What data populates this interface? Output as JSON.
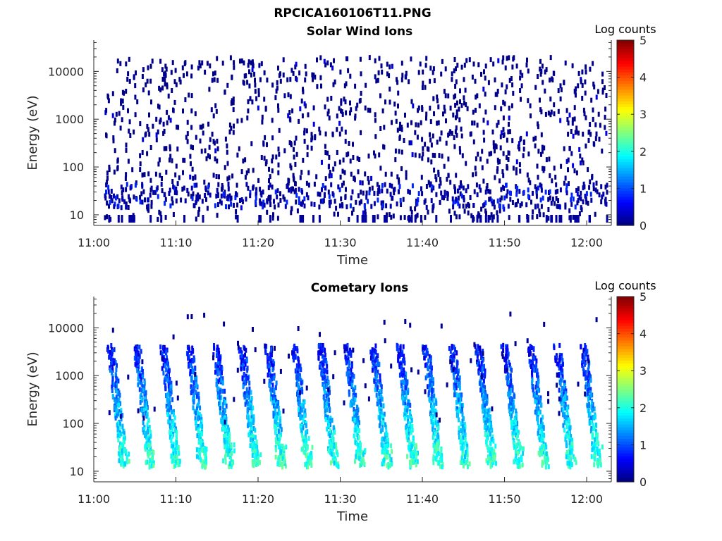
{
  "figure": {
    "title": "RPCICA160106T11.PNG"
  },
  "chart_data": [
    {
      "type": "heatmap",
      "title": "Solar Wind Ions",
      "xlabel": "Time",
      "ylabel": "Energy (eV)",
      "x_ticks": [
        "11:00",
        "11:10",
        "11:20",
        "11:30",
        "11:40",
        "11:50",
        "12:00"
      ],
      "x_range_minutes": [
        0,
        63
      ],
      "y_scale": "log",
      "y_ticks": [
        10,
        100,
        1000,
        10000
      ],
      "y_tick_labels": [
        "10",
        "100",
        "1000",
        "10000"
      ],
      "y_range": [
        6,
        45000
      ],
      "colorbar": {
        "label": "Log counts",
        "range": [
          0,
          5
        ],
        "ticks": [
          "0",
          "1",
          "2",
          "3",
          "4",
          "5"
        ],
        "colormap": "jet"
      },
      "description": "sparse single counts (log counts ~0) scattered over 10-20000 eV from 11:01 to 12:02, denser below ~30 eV"
    },
    {
      "type": "heatmap",
      "title": "Cometary Ions",
      "xlabel": "Time",
      "ylabel": "Energy (eV)",
      "x_ticks": [
        "11:00",
        "11:10",
        "11:20",
        "11:30",
        "11:40",
        "11:50",
        "12:00"
      ],
      "x_range_minutes": [
        0,
        63
      ],
      "y_scale": "log",
      "y_ticks": [
        10,
        100,
        1000,
        10000
      ],
      "y_tick_labels": [
        "10",
        "100",
        "1000",
        "10000"
      ],
      "y_range": [
        6,
        45000
      ],
      "colorbar": {
        "label": "Log counts",
        "range": [
          0,
          5
        ],
        "ticks": [
          "0",
          "1",
          "2",
          "3",
          "4",
          "5"
        ],
        "colormap": "jet"
      },
      "sweep_start_minutes": [
        2.2,
        5.4,
        8.6,
        11.8,
        15.0,
        18.2,
        21.4,
        24.6,
        27.8,
        31.0,
        34.2,
        37.4,
        40.6,
        43.8,
        47.0,
        50.2,
        53.4,
        56.6,
        59.8
      ],
      "sweep_energy_range_eV": [
        13,
        4000
      ],
      "peak_log_counts": 2.4
    }
  ]
}
